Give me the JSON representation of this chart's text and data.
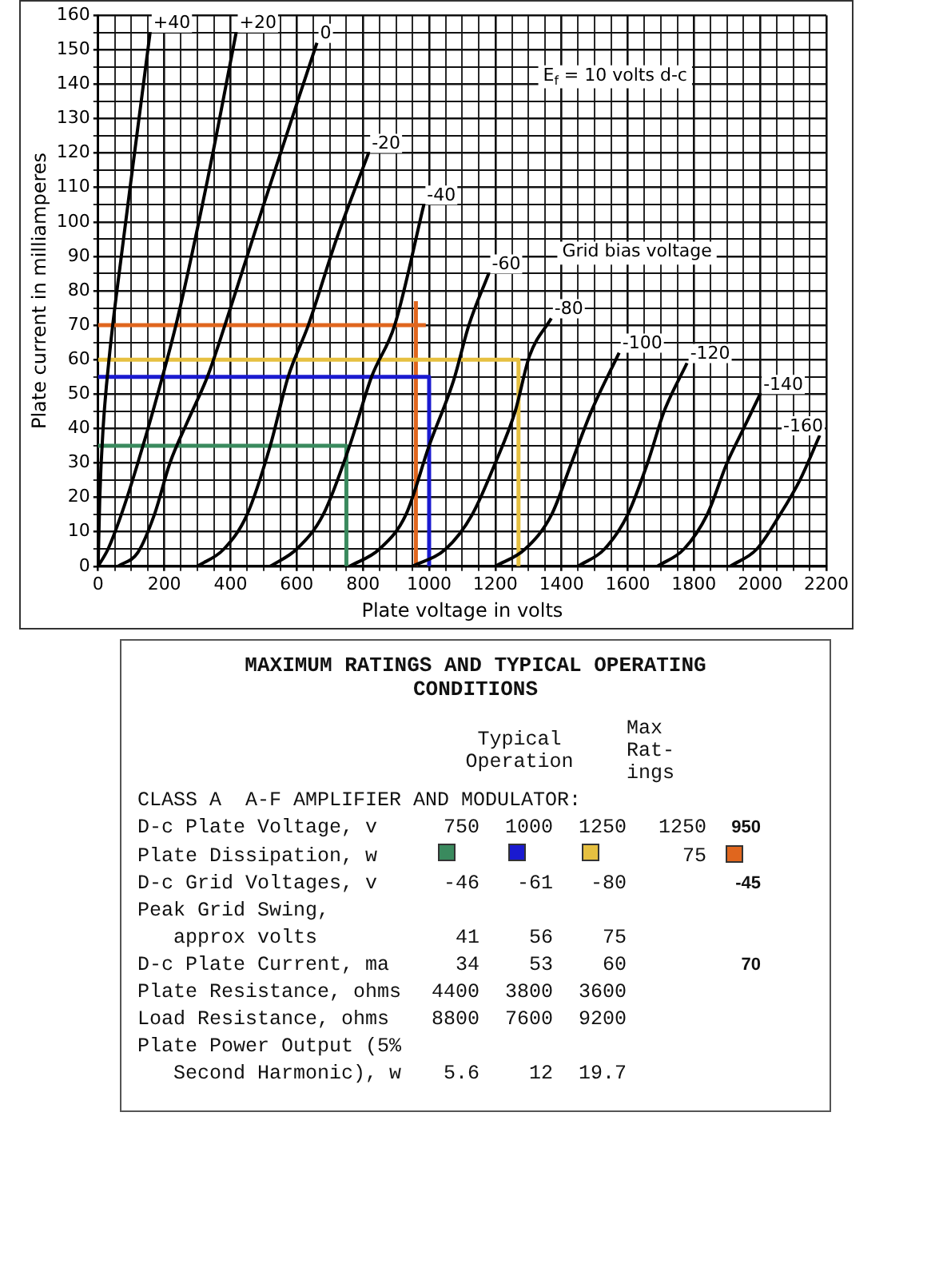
{
  "chart_data": [
    {
      "type": "line",
      "xlabel": "Plate voltage in volts",
      "ylabel": "Plate current in milliamperes",
      "xlim": [
        0,
        2200
      ],
      "ylim": [
        0,
        160
      ],
      "xticks": [
        0,
        {
          "value": 50,
          "label": null
        },
        {
          "value": 100,
          "label": null
        },
        {
          "value": 150,
          "label": null
        },
        200,
        {
          "value": 250,
          "label": null
        },
        {
          "value": 300,
          "label": null
        },
        {
          "value": 350,
          "label": null
        },
        400,
        {
          "value": 450,
          "label": null
        },
        {
          "value": 500,
          "label": null
        },
        {
          "value": 550,
          "label": null
        },
        600,
        {
          "value": 650,
          "label": null
        },
        {
          "value": 700,
          "label": null
        },
        {
          "value": 750,
          "label": null
        },
        800,
        {
          "value": 850,
          "label": null
        },
        {
          "value": 900,
          "label": null
        },
        {
          "value": 950,
          "label": null
        },
        1000,
        {
          "value": 1050,
          "label": null
        },
        {
          "value": 1100,
          "label": null
        },
        {
          "value": 1150,
          "label": null
        },
        1200,
        {
          "value": 1250,
          "label": null
        },
        {
          "value": 1300,
          "label": null
        },
        {
          "value": 1350,
          "label": null
        },
        1400,
        {
          "value": 1450,
          "label": null
        },
        {
          "value": 1500,
          "label": null
        },
        {
          "value": 1550,
          "label": null
        },
        1600,
        {
          "value": 1650,
          "label": null
        },
        {
          "value": 1700,
          "label": null
        },
        {
          "value": 1750,
          "label": null
        },
        1800,
        {
          "value": 1850,
          "label": null
        },
        {
          "value": 1900,
          "label": null
        },
        {
          "value": 1950,
          "label": null
        },
        2000,
        {
          "value": 2050,
          "label": null
        },
        {
          "value": 2100,
          "label": null
        },
        {
          "value": 2150,
          "label": null
        },
        2200
      ],
      "yticks": [
        0,
        {
          "value": 5,
          "label": null
        },
        10,
        {
          "value": 15,
          "label": null
        },
        20,
        {
          "value": 25,
          "label": null
        },
        30,
        {
          "value": 35,
          "label": null
        },
        40,
        {
          "value": 45,
          "label": null
        },
        50,
        {
          "value": 55,
          "label": null
        },
        60,
        {
          "value": 65,
          "label": null
        },
        70,
        {
          "value": 75,
          "label": null
        },
        80,
        {
          "value": 85,
          "label": null
        },
        90,
        {
          "value": 95,
          "label": null
        },
        100,
        {
          "value": 105,
          "label": null
        },
        110,
        {
          "value": 115,
          "label": null
        },
        120,
        {
          "value": 125,
          "label": null
        },
        130,
        {
          "value": 135,
          "label": null
        },
        140,
        {
          "value": 145,
          "label": null
        },
        150,
        {
          "value": 155,
          "label": null
        },
        160
      ],
      "grid": true,
      "legend": false,
      "marker": "none",
      "line_style": "solid",
      "series": [
        {
          "name": "+40",
          "color": "#000000",
          "x": [
            0,
            5,
            15,
            35,
            70,
            110,
            157
          ],
          "values": [
            0,
            20,
            40,
            62,
            90,
            120,
            155
          ]
        },
        {
          "name": "+20",
          "color": "#000000",
          "x": [
            0,
            30,
            70,
            120,
            180,
            240,
            330,
            417
          ],
          "values": [
            0,
            5,
            15,
            30,
            50,
            72,
            112,
            155
          ]
        },
        {
          "name": "0",
          "color": "#000000",
          "x": [
            60,
            120,
            170,
            217,
            270,
            330,
            383,
            500,
            661
          ],
          "values": [
            0,
            4,
            15,
            30,
            42,
            55,
            70,
            105,
            152
          ]
        },
        {
          "name": "-20",
          "color": "#000000",
          "x": [
            300,
            380,
            450,
            520,
            574,
            635,
            720,
            817
          ],
          "values": [
            0,
            5,
            15,
            35,
            55,
            70,
            95,
            120
          ]
        },
        {
          "name": "-40",
          "color": "#000000",
          "x": [
            520,
            600,
            680,
            760,
            826,
            896,
            984
          ],
          "values": [
            0,
            5,
            15,
            35,
            55,
            70,
            105
          ]
        },
        {
          "name": "-60",
          "color": "#000000",
          "x": [
            760,
            850,
            930,
            1000,
            1074,
            1120,
            1180
          ],
          "values": [
            0,
            5,
            15,
            35,
            54,
            70,
            85
          ]
        },
        {
          "name": "-80",
          "color": "#000000",
          "x": [
            950,
            1050,
            1130,
            1200,
            1260,
            1303,
            1369
          ],
          "values": [
            0,
            5,
            15,
            30,
            45,
            61,
            72
          ]
        },
        {
          "name": "-100",
          "color": "#000000",
          "x": [
            1200,
            1290,
            1370,
            1430,
            1490,
            1574
          ],
          "values": [
            0,
            5,
            15,
            30,
            45,
            62
          ]
        },
        {
          "name": "-120",
          "color": "#000000",
          "x": [
            1450,
            1530,
            1600,
            1660,
            1710,
            1779
          ],
          "values": [
            0,
            5,
            15,
            30,
            45,
            59
          ]
        },
        {
          "name": "-140",
          "color": "#000000",
          "x": [
            1690,
            1770,
            1840,
            1900,
            1950,
            2000
          ],
          "values": [
            0,
            5,
            15,
            30,
            40,
            50
          ]
        },
        {
          "name": "-160",
          "color": "#000000",
          "x": [
            1910,
            1990,
            2060,
            2120,
            2180
          ],
          "values": [
            0,
            5,
            15,
            25,
            38
          ]
        },
        {
          "color": "#3a8a5e",
          "x": [
            0,
            750,
            750
          ],
          "values": [
            35,
            35,
            0
          ]
        },
        {
          "color": "#1a1ad0",
          "x": [
            0,
            1000,
            1000
          ],
          "values": [
            55,
            55,
            0
          ]
        },
        {
          "color": "#e6c040",
          "x": [
            0,
            1270,
            1270
          ],
          "values": [
            60,
            60,
            0
          ]
        },
        {
          "color": "#e0661e",
          "x": [
            0,
            990
          ],
          "values": [
            70,
            70
          ]
        },
        {
          "color": "#e0661e",
          "x": [
            960,
            960
          ],
          "values": [
            0,
            77
          ]
        }
      ],
      "annotations": [
        "E$_{f}$ = 10 volts d-c",
        "Grid bias voltage"
      ]
    },
    {
      "type": "other",
      "title": "MAXIMUM RATINGS AND TYPICAL OPERATING CONDITIONS",
      "annotations": [
        "\tTypical\nOperation\tMax\nRat-\nings",
        "CLASS A  A-F AMPLIFIER AND MODULATOR:",
        "D-c Plate Voltage, v\t750\t1000\t1250\t1250\t950",
        "Plate Dissipation, w\t\t\t\t75\t",
        "D-c Grid Voltages, v\t-46\t-61\t-80\t\t-45",
        "Peak Grid Swing,",
        "   approx volts\t41\t56\t75",
        "D-c Plate Current, ma\t34\t53\t60\t\t70",
        "Plate Resistance, ohms\t4400\t3800\t3600",
        "Load Resistance, ohms\t8800\t7600\t9200",
        "Plate Power Output (5%",
        "   Second Harmonic), w\t5.6\t12\t19.7"
      ]
    }
  ]
}
